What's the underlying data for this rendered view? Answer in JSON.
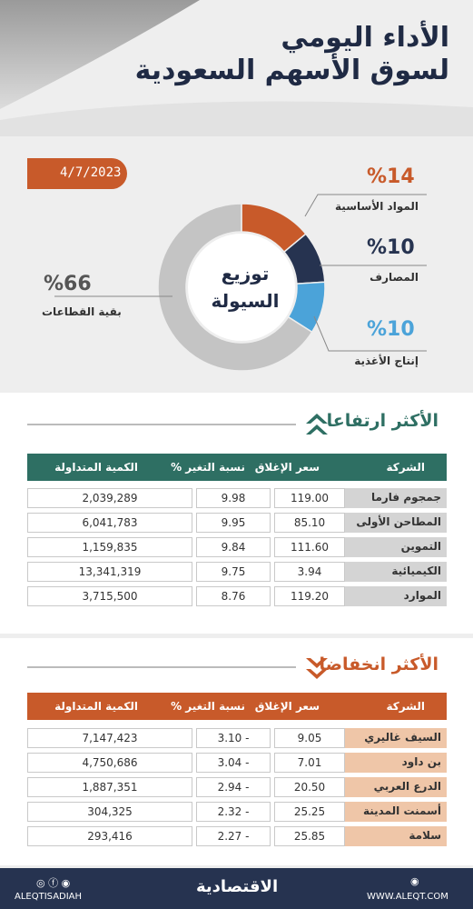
{
  "header": {
    "title_line1": "الأداء اليومي",
    "title_line2": "لسوق الأسهم السعودية",
    "date": "4/7/2023"
  },
  "distribution": {
    "center_label_line1": "توزيع",
    "center_label_line2": "السيولة",
    "segments": [
      {
        "label": "المواد الأساسية",
        "pct_text": "%14",
        "value": 14,
        "color": "#c85a2a"
      },
      {
        "label": "المصارف",
        "pct_text": "%10",
        "value": 10,
        "color": "#263350"
      },
      {
        "label": "إنتاج الأغذية",
        "pct_text": "%10",
        "value": 10,
        "color": "#4ba3d9"
      },
      {
        "label": "بقية القطاعات",
        "pct_text": "%66",
        "value": 66,
        "color": "#c4c4c4"
      }
    ]
  },
  "gainers": {
    "title": "الأكثر ارتفاعا",
    "header_color": "#2e6f63",
    "columns": {
      "company": "الشركة",
      "close": "سعر الإغلاق",
      "change": "نسبة التغير %",
      "volume": "الكمية المتداولة"
    },
    "rows": [
      {
        "company": "جمجوم فارما",
        "close": "119.00",
        "change": "9.98",
        "volume": "2,039,289"
      },
      {
        "company": "المطاحن الأولى",
        "close": "85.10",
        "change": "9.95",
        "volume": "6,041,783"
      },
      {
        "company": "التموين",
        "close": "111.60",
        "change": "9.84",
        "volume": "1,159,835"
      },
      {
        "company": "الكيميائية",
        "close": "3.94",
        "change": "9.75",
        "volume": "13,341,319"
      },
      {
        "company": "الموارد",
        "close": "119.20",
        "change": "8.76",
        "volume": "3,715,500"
      }
    ]
  },
  "losers": {
    "title": "الأكثر انخفاضا",
    "header_color": "#c85a2a",
    "columns": {
      "company": "الشركة",
      "close": "سعر الإغلاق",
      "change": "نسبة التغير %",
      "volume": "الكمية المتداولة"
    },
    "rows": [
      {
        "company": "السيف غاليري",
        "close": "9.05",
        "change": "3.10 -",
        "volume": "7,147,423"
      },
      {
        "company": "بن داود",
        "close": "7.01",
        "change": "3.04 -",
        "volume": "4,750,686"
      },
      {
        "company": "الدرع العربي",
        "close": "20.50",
        "change": "2.94 -",
        "volume": "1,887,351"
      },
      {
        "company": "أسمنت المدينة",
        "close": "25.25",
        "change": "2.32 -",
        "volume": "304,325"
      },
      {
        "company": "سلامة",
        "close": "25.85",
        "change": "2.27 -",
        "volume": "293,416"
      }
    ]
  },
  "footer": {
    "social_handle": "ALEQTISADIAH",
    "logo_text": "الاقتصادية",
    "website": "WWW.ALEQT.COM"
  }
}
